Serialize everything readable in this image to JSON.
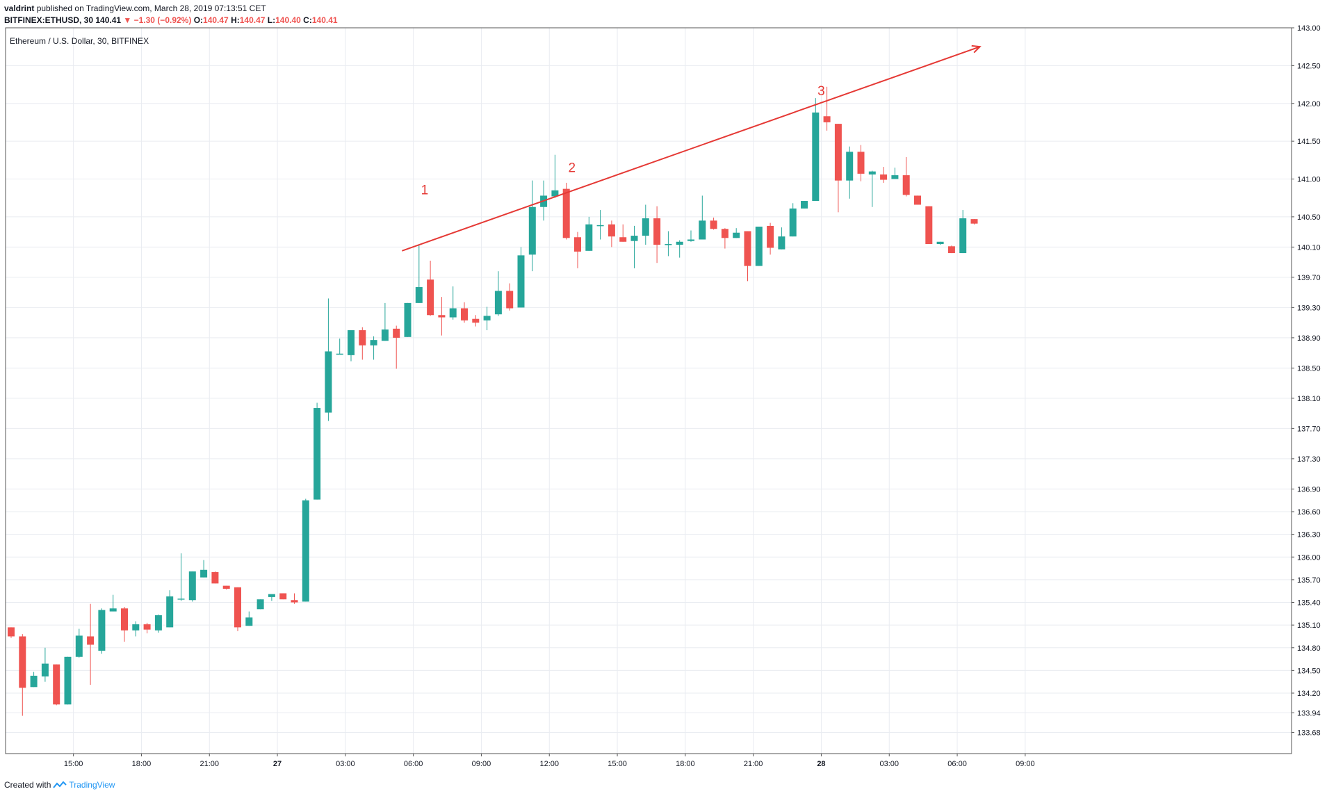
{
  "header": {
    "author": "valdrint",
    "published": "published on TradingView.com, March 28, 2019 07:13:51 CET",
    "symbol": "BITFINEX:ETHUSD, 30",
    "last": "140.41",
    "change": "▼ −1.30 (−0.92%)",
    "o_label": "O:",
    "o_val": "140.47",
    "h_label": "H:",
    "h_val": "140.47",
    "l_label": "L:",
    "l_val": "140.40",
    "c_label": "C:",
    "c_val": "140.41"
  },
  "footer": {
    "created_with": "Created with",
    "brand": "TradingView"
  },
  "colors": {
    "up": "#26a69a",
    "down": "#ef5350",
    "grid": "#e9ecf1",
    "axis": "#131722",
    "annotation": "#e53935"
  },
  "chart_data": {
    "type": "candlestick",
    "title": "Ethereum / U.S. Dollar, 30, BITFINEX",
    "ylim": [
      133.4,
      143.0
    ],
    "y_ticks": [
      "133.68",
      "133.94",
      "134.20",
      "134.50",
      "134.80",
      "135.10",
      "135.40",
      "135.70",
      "136.00",
      "136.30",
      "136.60",
      "136.90",
      "137.30",
      "137.70",
      "138.10",
      "138.50",
      "138.90",
      "139.30",
      "139.70",
      "140.10",
      "140.50",
      "141.00",
      "141.50",
      "142.00",
      "142.50",
      "143.00"
    ],
    "x_ticks": [
      {
        "label": "15:00",
        "index": 5.5,
        "bold": false
      },
      {
        "label": "18:00",
        "index": 11.5,
        "bold": false
      },
      {
        "label": "21:00",
        "index": 17.5,
        "bold": false
      },
      {
        "label": "27",
        "index": 23.5,
        "bold": true
      },
      {
        "label": "03:00",
        "index": 29.5,
        "bold": false
      },
      {
        "label": "06:00",
        "index": 35.5,
        "bold": false
      },
      {
        "label": "09:00",
        "index": 41.5,
        "bold": false
      },
      {
        "label": "12:00",
        "index": 47.5,
        "bold": false
      },
      {
        "label": "15:00",
        "index": 53.5,
        "bold": false
      },
      {
        "label": "18:00",
        "index": 59.5,
        "bold": false
      },
      {
        "label": "21:00",
        "index": 65.5,
        "bold": false
      },
      {
        "label": "28",
        "index": 71.5,
        "bold": true
      },
      {
        "label": "03:00",
        "index": 77.5,
        "bold": false
      },
      {
        "label": "06:00",
        "index": 83.5,
        "bold": false
      },
      {
        "label": "09:00",
        "index": 89.5,
        "bold": false
      }
    ],
    "candles": [
      [
        135.07,
        135.07,
        134.93,
        134.95
      ],
      [
        134.95,
        134.98,
        133.9,
        134.27
      ],
      [
        134.28,
        134.48,
        134.28,
        134.43
      ],
      [
        134.42,
        134.8,
        134.35,
        134.59
      ],
      [
        134.58,
        134.58,
        134.04,
        134.05
      ],
      [
        134.05,
        134.68,
        134.05,
        134.68
      ],
      [
        134.68,
        135.05,
        134.67,
        134.96
      ],
      [
        134.95,
        135.38,
        134.31,
        134.84
      ],
      [
        134.76,
        135.32,
        134.72,
        135.3
      ],
      [
        135.28,
        135.5,
        135.28,
        135.32
      ],
      [
        135.32,
        135.34,
        134.88,
        135.03
      ],
      [
        135.03,
        135.15,
        134.95,
        135.11
      ],
      [
        135.11,
        135.13,
        134.99,
        135.04
      ],
      [
        135.03,
        135.24,
        135.0,
        135.23
      ],
      [
        135.07,
        135.56,
        135.07,
        135.48
      ],
      [
        135.44,
        136.05,
        135.42,
        135.45
      ],
      [
        135.43,
        135.81,
        135.41,
        135.81
      ],
      [
        135.73,
        135.96,
        135.73,
        135.83
      ],
      [
        135.8,
        135.81,
        135.65,
        135.65
      ],
      [
        135.62,
        135.62,
        135.57,
        135.58
      ],
      [
        135.6,
        135.6,
        135.02,
        135.07
      ],
      [
        135.09,
        135.28,
        135.09,
        135.2
      ],
      [
        135.31,
        135.44,
        135.31,
        135.44
      ],
      [
        135.47,
        135.51,
        135.42,
        135.51
      ],
      [
        135.52,
        135.52,
        135.44,
        135.44
      ],
      [
        135.43,
        135.52,
        135.38,
        135.4
      ],
      [
        135.41,
        136.77,
        135.41,
        136.75
      ],
      [
        136.76,
        138.04,
        136.76,
        137.97
      ],
      [
        137.91,
        139.42,
        137.8,
        138.72
      ],
      [
        138.69,
        138.89,
        138.68,
        138.69
      ],
      [
        138.67,
        139.0,
        138.59,
        139.0
      ],
      [
        139.0,
        139.04,
        138.61,
        138.8
      ],
      [
        138.8,
        138.92,
        138.61,
        138.87
      ],
      [
        138.86,
        139.36,
        138.86,
        139.01
      ],
      [
        139.02,
        139.06,
        138.49,
        138.9
      ],
      [
        138.91,
        139.36,
        138.91,
        139.36
      ],
      [
        139.36,
        140.12,
        139.36,
        139.57
      ],
      [
        139.67,
        139.92,
        139.19,
        139.2
      ],
      [
        139.2,
        139.44,
        138.93,
        139.17
      ],
      [
        139.17,
        139.58,
        139.14,
        139.29
      ],
      [
        139.29,
        139.37,
        139.1,
        139.13
      ],
      [
        139.15,
        139.2,
        139.05,
        139.1
      ],
      [
        139.13,
        139.31,
        139.0,
        139.19
      ],
      [
        139.21,
        139.78,
        139.19,
        139.52
      ],
      [
        139.52,
        139.62,
        139.26,
        139.29
      ],
      [
        139.3,
        140.1,
        139.3,
        139.99
      ],
      [
        140.0,
        140.98,
        139.78,
        140.63
      ],
      [
        140.63,
        140.98,
        140.45,
        140.78
      ],
      [
        140.77,
        141.32,
        140.75,
        140.85
      ],
      [
        140.87,
        140.95,
        140.2,
        140.22
      ],
      [
        140.23,
        140.3,
        139.82,
        140.04
      ],
      [
        140.05,
        140.5,
        140.05,
        140.4
      ],
      [
        140.39,
        140.59,
        140.2,
        140.39
      ],
      [
        140.4,
        140.45,
        140.1,
        140.24
      ],
      [
        140.23,
        140.4,
        140.17,
        140.17
      ],
      [
        140.18,
        140.38,
        139.82,
        140.25
      ],
      [
        140.25,
        140.66,
        140.13,
        140.48
      ],
      [
        140.48,
        140.64,
        139.89,
        140.13
      ],
      [
        140.13,
        140.31,
        139.98,
        140.14
      ],
      [
        140.13,
        140.19,
        139.96,
        140.17
      ],
      [
        140.18,
        140.32,
        140.17,
        140.2
      ],
      [
        140.2,
        140.78,
        140.2,
        140.45
      ],
      [
        140.45,
        140.49,
        140.33,
        140.34
      ],
      [
        140.34,
        140.35,
        140.08,
        140.22
      ],
      [
        140.22,
        140.35,
        140.22,
        140.29
      ],
      [
        140.31,
        140.31,
        139.65,
        139.85
      ],
      [
        139.85,
        140.37,
        139.85,
        140.37
      ],
      [
        140.38,
        140.42,
        140.0,
        140.09
      ],
      [
        140.07,
        140.36,
        140.07,
        140.24
      ],
      [
        140.24,
        140.68,
        140.24,
        140.61
      ],
      [
        140.61,
        140.71,
        140.61,
        140.71
      ],
      [
        140.71,
        142.07,
        140.71,
        141.88
      ],
      [
        141.83,
        142.22,
        141.64,
        141.75
      ],
      [
        141.73,
        141.73,
        140.56,
        140.98
      ],
      [
        140.98,
        141.43,
        140.74,
        141.36
      ],
      [
        141.36,
        141.45,
        140.97,
        141.07
      ],
      [
        141.06,
        141.11,
        140.63,
        141.1
      ],
      [
        141.06,
        141.16,
        140.95,
        140.99
      ],
      [
        141.0,
        141.15,
        141.0,
        141.05
      ],
      [
        141.05,
        141.29,
        140.77,
        140.79
      ],
      [
        140.78,
        140.78,
        140.66,
        140.66
      ],
      [
        140.64,
        140.64,
        140.14,
        140.14
      ],
      [
        140.14,
        140.17,
        140.13,
        140.17
      ],
      [
        140.11,
        140.12,
        140.02,
        140.02
      ],
      [
        140.02,
        140.59,
        140.02,
        140.48
      ],
      [
        140.47,
        140.47,
        140.4,
        140.41
      ]
    ],
    "trendline": {
      "from": [
        34.5,
        140.05
      ],
      "to": [
        85.5,
        142.75
      ]
    },
    "annotations": [
      {
        "text": "1",
        "index": 36.5,
        "price": 140.8
      },
      {
        "text": "2",
        "index": 49.5,
        "price": 141.09
      },
      {
        "text": "3",
        "index": 71.5,
        "price": 142.11
      }
    ]
  }
}
